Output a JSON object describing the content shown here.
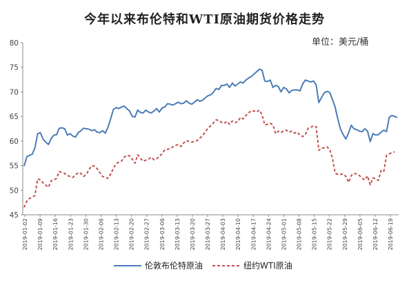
{
  "chart_data": {
    "type": "line",
    "title": "今年以来布伦特和WTI原油期货价格走势",
    "unit": "单位：美元/桶",
    "ylim": [
      45,
      80
    ],
    "yticks": [
      45,
      50,
      55,
      60,
      65,
      70,
      75,
      80
    ],
    "xticks": [
      "2019-01-02",
      "2019-01-09",
      "2019-01-16",
      "2019-01-23",
      "2019-01-30",
      "2019-02-06",
      "2019-02-13",
      "2019-02-20",
      "2019-02-27",
      "2019-03-06",
      "2019-03-13",
      "2019-03-20",
      "2019-03-27",
      "2019-04-03",
      "2019-04-10",
      "2019-04-17",
      "2019-04-24",
      "2019-05-01",
      "2019-05-08",
      "2019-05-15",
      "2019-05-22",
      "2019-05-29",
      "2019-06-05",
      "2019-06-12",
      "2019-06-19"
    ],
    "series": [
      {
        "name": "伦敦布伦特原油",
        "color": "#4a7ab5",
        "style": "solid",
        "values": [
          54.9,
          56.8,
          57.1,
          57.3,
          58.6,
          61.5,
          61.7,
          60.4,
          59.8,
          59.3,
          60.5,
          61.2,
          61.3,
          62.6,
          62.7,
          62.5,
          61.2,
          61.5,
          61.0,
          60.8,
          61.7,
          62.1,
          62.6,
          62.5,
          62.4,
          62.1,
          62.3,
          61.8,
          61.7,
          62.1,
          61.6,
          62.8,
          64.5,
          66.4,
          66.8,
          66.6,
          66.9,
          67.1,
          66.6,
          66.1,
          65.0,
          64.9,
          66.3,
          65.8,
          65.7,
          66.3,
          65.9,
          65.7,
          66.1,
          66.6,
          65.9,
          66.7,
          66.9,
          67.6,
          67.5,
          67.3,
          67.6,
          67.9,
          67.6,
          67.7,
          68.2,
          67.7,
          67.5,
          67.9,
          68.4,
          68.1,
          68.3,
          68.8,
          69.2,
          69.4,
          69.9,
          70.7,
          70.5,
          71.3,
          71.3,
          71.6,
          70.9,
          71.8,
          71.2,
          71.6,
          72.0,
          71.8,
          72.4,
          72.8,
          73.1,
          73.6,
          74.1,
          74.6,
          74.4,
          72.2,
          72.1,
          72.4,
          70.9,
          71.3,
          71.1,
          70.0,
          70.9,
          70.6,
          69.8,
          70.3,
          70.4,
          70.4,
          70.2,
          71.6,
          72.4,
          72.2,
          72.0,
          72.2,
          71.4,
          67.8,
          68.9,
          69.8,
          70.1,
          69.9,
          68.5,
          66.9,
          64.5,
          62.4,
          61.3,
          60.4,
          61.7,
          63.2,
          62.5,
          62.3,
          62.0,
          61.9,
          62.5,
          62.0,
          59.9,
          61.5,
          61.2,
          61.3,
          61.8,
          62.2,
          61.9,
          64.8,
          65.2,
          65.0,
          64.8
        ]
      },
      {
        "name": "纽约WTI原油",
        "color": "#c0504d",
        "style": "dashed",
        "values": [
          46.5,
          47.8,
          48.3,
          48.6,
          48.9,
          52.3,
          52.1,
          51.5,
          51.0,
          50.6,
          51.9,
          52.1,
          52.4,
          53.8,
          53.6,
          53.4,
          53.0,
          52.8,
          52.6,
          53.1,
          53.6,
          53.4,
          52.8,
          53.2,
          54.2,
          55.0,
          54.9,
          54.4,
          53.6,
          52.8,
          52.6,
          52.4,
          53.3,
          54.4,
          55.4,
          55.7,
          55.9,
          56.7,
          57.1,
          57.0,
          56.3,
          55.5,
          57.2,
          56.5,
          55.9,
          56.1,
          56.3,
          56.7,
          56.2,
          56.4,
          56.9,
          57.4,
          58.2,
          58.3,
          58.5,
          58.8,
          59.1,
          59.3,
          58.9,
          59.6,
          60.1,
          59.9,
          59.8,
          59.9,
          60.1,
          60.6,
          61.1,
          61.9,
          62.6,
          63.1,
          63.7,
          64.3,
          64.2,
          63.8,
          63.6,
          64.0,
          63.4,
          64.1,
          63.8,
          63.9,
          64.8,
          64.5,
          65.2,
          65.7,
          66.2,
          66.1,
          65.9,
          66.3,
          65.3,
          63.3,
          63.4,
          63.6,
          63.3,
          61.5,
          62.0,
          61.7,
          62.1,
          62.2,
          61.8,
          62.0,
          61.6,
          61.8,
          61.2,
          60.9,
          61.3,
          62.6,
          62.8,
          63.1,
          62.9,
          58.1,
          58.6,
          58.6,
          58.8,
          58.3,
          56.6,
          53.5,
          53.2,
          53.2,
          53.3,
          52.8,
          51.6,
          53.0,
          53.4,
          53.3,
          53.0,
          52.4,
          52.1,
          52.9,
          51.1,
          52.5,
          52.3,
          52.0,
          54.0,
          53.8,
          57.1,
          57.4,
          57.6,
          57.8
        ]
      }
    ]
  }
}
